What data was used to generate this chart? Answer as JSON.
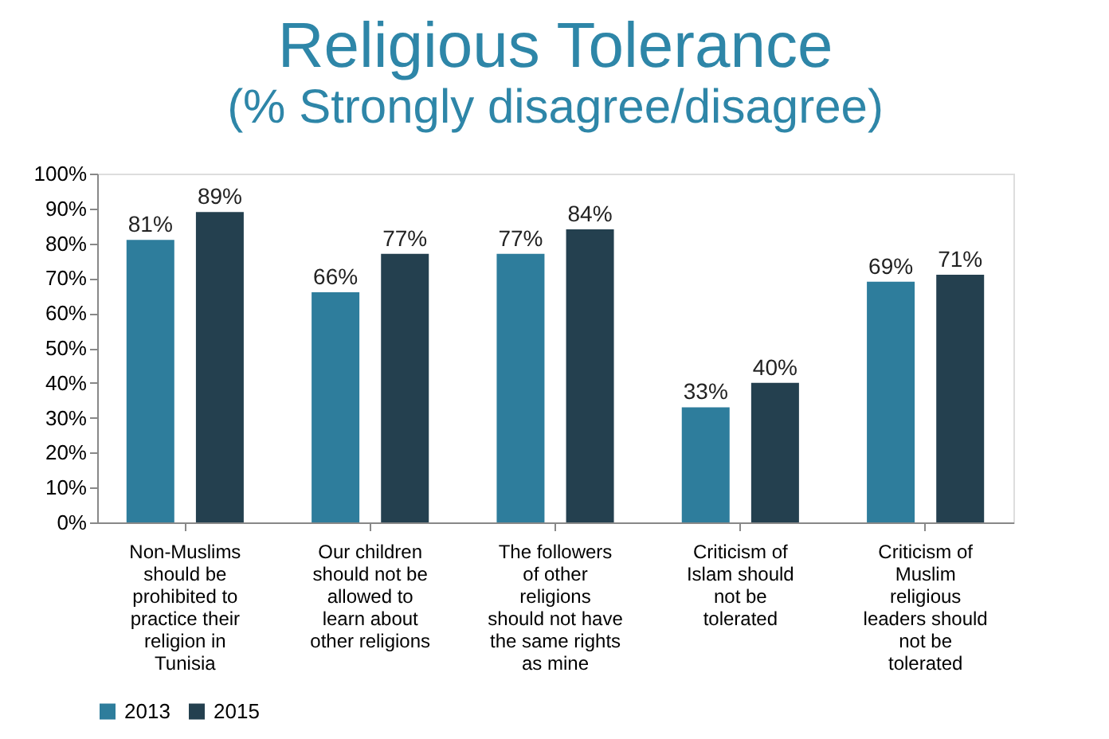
{
  "chart_data": {
    "type": "bar",
    "title": "Religious Tolerance",
    "subtitle": "(% Strongly disagree/disagree)",
    "categories": [
      "Non-Muslims should be prohibited to practice their religion in Tunisia",
      "Our children should not be allowed to learn about other religions",
      "The followers of other religions should not have the same rights as mine",
      "Criticism of Islam should not be tolerated",
      "Criticism of Muslim religious leaders should not be tolerated"
    ],
    "series": [
      {
        "name": "2013",
        "color": "#2e7d9c",
        "values": [
          81,
          66,
          77,
          33,
          69
        ],
        "value_labels": [
          "81%",
          "66%",
          "77%",
          "33%",
          "69%"
        ]
      },
      {
        "name": "2015",
        "color": "#24404f",
        "values": [
          89,
          77,
          84,
          40,
          71
        ],
        "value_labels": [
          "89%",
          "77%",
          "84%",
          "40%",
          "71%"
        ]
      }
    ],
    "ylim": [
      0,
      100
    ],
    "yticks": [
      {
        "value": 0,
        "label": "0%"
      },
      {
        "value": 10,
        "label": "10%"
      },
      {
        "value": 20,
        "label": "20%"
      },
      {
        "value": 30,
        "label": "30%"
      },
      {
        "value": 40,
        "label": "40%"
      },
      {
        "value": 50,
        "label": "50%"
      },
      {
        "value": 60,
        "label": "60%"
      },
      {
        "value": 70,
        "label": "70%"
      },
      {
        "value": 80,
        "label": "80%"
      },
      {
        "value": 90,
        "label": "90%"
      },
      {
        "value": 100,
        "label": "100%"
      }
    ],
    "grid": false,
    "legend": "bottom"
  }
}
